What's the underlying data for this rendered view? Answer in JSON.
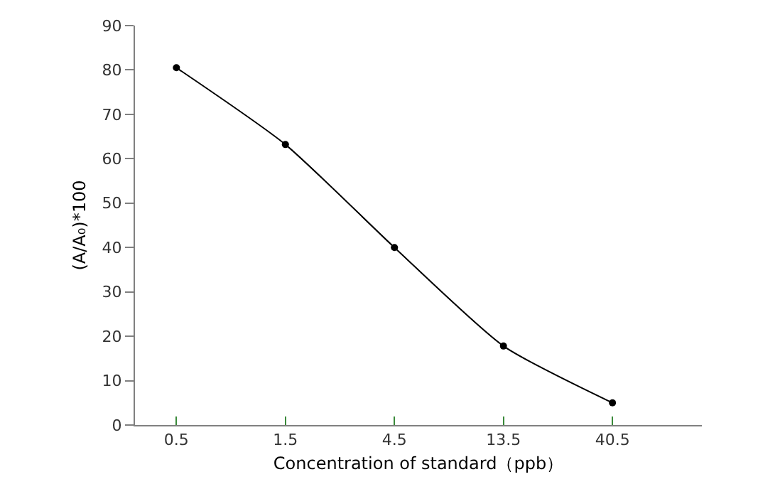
{
  "chart_data": {
    "type": "line",
    "xlabel": "Concentration of standard（ppb）",
    "ylabel": "(A/A₀)*100",
    "categories": [
      "0.5",
      "1.5",
      "4.5",
      "13.5",
      "40.5"
    ],
    "series": [
      {
        "color": "#000000",
        "values": [
          80.5,
          63.2,
          40.0,
          17.8,
          5.0
        ]
      }
    ],
    "ylim": [
      0,
      90
    ],
    "yticks": [
      0,
      10,
      20,
      30,
      40,
      50,
      60,
      70,
      80,
      90
    ],
    "legend": false,
    "marker": "circle",
    "line_style": "solid"
  }
}
